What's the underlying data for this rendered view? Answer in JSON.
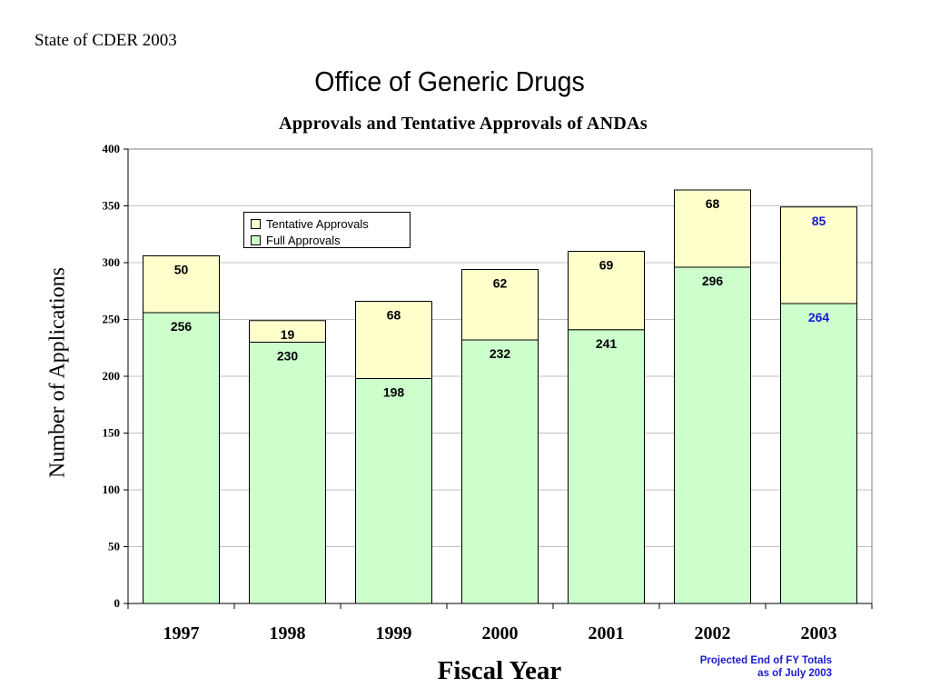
{
  "header": {
    "label": "State of CDER 2003"
  },
  "slide": {
    "title": "Office of Generic Drugs"
  },
  "footnote": {
    "line1": "Projected End of FY Totals",
    "line2": "as of July 2003"
  },
  "colors": {
    "full": "#ccffcc",
    "tentative": "#ffffcc",
    "projected_label": "#1a1ad0",
    "gridline": "#c0c0c0"
  },
  "chart_data": {
    "type": "bar",
    "stacked": true,
    "title": "Approvals and Tentative Approvals of ANDAs",
    "xlabel": "Fiscal Year",
    "ylabel": "Number of Applications",
    "categories": [
      "1997",
      "1998",
      "1999",
      "2000",
      "2001",
      "2002",
      "2003"
    ],
    "ylim": [
      0,
      400
    ],
    "yticks": [
      0,
      50,
      100,
      150,
      200,
      250,
      300,
      350,
      400
    ],
    "grid": true,
    "legend_position": "top-left",
    "series": [
      {
        "name": "Full Approvals",
        "values": [
          256,
          230,
          198,
          232,
          241,
          296,
          264
        ],
        "color": "#ccffcc"
      },
      {
        "name": "Tentative Approvals",
        "values": [
          50,
          19,
          68,
          62,
          69,
          68,
          85
        ],
        "color": "#ffffcc"
      }
    ],
    "projected_categories": [
      "2003"
    ]
  }
}
